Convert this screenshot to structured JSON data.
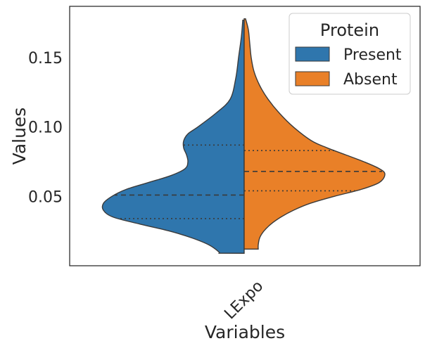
{
  "chart_data": {
    "type": "violin",
    "split": true,
    "title": "",
    "xlabel": "Variables",
    "ylabel": "Values",
    "categories": [
      "LExpo"
    ],
    "ylim": [
      0.0,
      0.187
    ],
    "yticks": [
      0.05,
      0.1,
      0.15
    ],
    "ytick_labels": [
      "0.05",
      "0.10",
      "0.15"
    ],
    "xtick_rotation_deg": 45,
    "grid": false,
    "legend": {
      "title": "Protein",
      "placement": "upper right",
      "entries": [
        "Present",
        "Absent"
      ]
    },
    "series": [
      {
        "name": "Present",
        "color": "#2f76ad",
        "side": "left",
        "min": 0.009,
        "max": 0.177,
        "quartiles": {
          "q1": 0.034,
          "median": 0.051,
          "q3": 0.087
        },
        "density": [
          [
            0.177,
            0.01
          ],
          [
            0.165,
            0.02
          ],
          [
            0.15,
            0.04
          ],
          [
            0.135,
            0.06
          ],
          [
            0.12,
            0.1
          ],
          [
            0.11,
            0.2
          ],
          [
            0.1,
            0.33
          ],
          [
            0.095,
            0.4
          ],
          [
            0.09,
            0.43
          ],
          [
            0.085,
            0.43
          ],
          [
            0.08,
            0.41
          ],
          [
            0.075,
            0.4
          ],
          [
            0.07,
            0.42
          ],
          [
            0.065,
            0.52
          ],
          [
            0.06,
            0.68
          ],
          [
            0.055,
            0.84
          ],
          [
            0.05,
            0.94
          ],
          [
            0.045,
            1.0
          ],
          [
            0.04,
            1.0
          ],
          [
            0.035,
            0.93
          ],
          [
            0.03,
            0.74
          ],
          [
            0.025,
            0.53
          ],
          [
            0.02,
            0.37
          ],
          [
            0.015,
            0.25
          ],
          [
            0.01,
            0.18
          ],
          [
            0.009,
            0.18
          ]
        ]
      },
      {
        "name": "Absent",
        "color": "#e98028",
        "side": "right",
        "min": 0.012,
        "max": 0.178,
        "quartiles": {
          "q1": 0.054,
          "median": 0.068,
          "q3": 0.083
        },
        "density": [
          [
            0.178,
            0.01
          ],
          [
            0.17,
            0.03
          ],
          [
            0.16,
            0.04
          ],
          [
            0.15,
            0.05
          ],
          [
            0.14,
            0.07
          ],
          [
            0.13,
            0.11
          ],
          [
            0.12,
            0.17
          ],
          [
            0.11,
            0.25
          ],
          [
            0.1,
            0.35
          ],
          [
            0.09,
            0.48
          ],
          [
            0.085,
            0.59
          ],
          [
            0.08,
            0.72
          ],
          [
            0.075,
            0.85
          ],
          [
            0.07,
            0.96
          ],
          [
            0.066,
            1.0
          ],
          [
            0.06,
            0.96
          ],
          [
            0.055,
            0.83
          ],
          [
            0.05,
            0.64
          ],
          [
            0.045,
            0.47
          ],
          [
            0.04,
            0.35
          ],
          [
            0.035,
            0.26
          ],
          [
            0.03,
            0.19
          ],
          [
            0.025,
            0.14
          ],
          [
            0.02,
            0.11
          ],
          [
            0.015,
            0.1
          ],
          [
            0.012,
            0.1
          ]
        ]
      }
    ]
  }
}
